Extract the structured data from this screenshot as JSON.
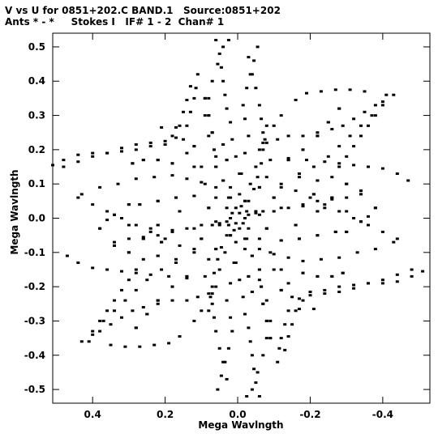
{
  "header": {
    "line1": "V vs U for 0851+202.C BAND.1   Source:0851+202",
    "line2": "Ants * - *     Stokes I   IF# 1 - 2  Chan# 1"
  },
  "chart_data": {
    "type": "scatter",
    "title": "V vs U for 0851+202.C BAND.1   Source:0851+202",
    "subtitle": "Ants * - *     Stokes I   IF# 1 - 2  Chan# 1",
    "xlabel": "Mega Wavlngth",
    "ylabel": "Mega Wavlngth",
    "xlim": [
      0.51,
      -0.53
    ],
    "ylim": [
      -0.54,
      0.54
    ],
    "x_reversed": true,
    "xticks": [
      0.4,
      0.2,
      0.0,
      -0.2,
      -0.4
    ],
    "xtick_labels": [
      "0.4",
      "0.2",
      "0.0",
      "-0.2",
      "-0.4"
    ],
    "yticks": [
      0.5,
      0.4,
      0.3,
      0.2,
      0.1,
      0.0,
      -0.1,
      -0.2,
      -0.3,
      -0.4,
      -0.5
    ],
    "ytick_labels": [
      "0.5",
      "0.4",
      "0.3",
      "0.2",
      "0.1",
      "0.0",
      "-0.1",
      "-0.2",
      "-0.3",
      "-0.4",
      "-0.5"
    ],
    "grid": false,
    "marker_color": "#000000",
    "series": [
      {
        "points": [
          [
            0.48,
            0.15
          ],
          [
            0.44,
            0.165
          ],
          [
            0.4,
            0.18
          ],
          [
            0.36,
            0.19
          ],
          [
            0.32,
            0.205
          ],
          [
            0.28,
            0.215
          ],
          [
            0.24,
            0.22
          ],
          [
            0.2,
            0.225
          ],
          [
            0.17,
            0.235
          ],
          [
            0.12,
            0.21
          ],
          [
            0.43,
            0.07
          ],
          [
            0.38,
            0.09
          ],
          [
            0.33,
            0.1
          ],
          [
            0.28,
            0.115
          ],
          [
            0.23,
            0.12
          ],
          [
            0.18,
            0.125
          ],
          [
            0.14,
            0.115
          ],
          [
            0.1,
            0.105
          ],
          [
            0.06,
            0.09
          ],
          [
            0.36,
            -0.005
          ],
          [
            0.3,
            -0.02
          ],
          [
            0.24,
            -0.03
          ],
          [
            0.18,
            -0.035
          ],
          [
            0.12,
            -0.03
          ],
          [
            0.07,
            -0.02
          ],
          [
            0.03,
            -0.01
          ],
          [
            -0.02,
            0.0
          ],
          [
            -0.06,
            0.01
          ],
          [
            -0.1,
            0.02
          ],
          [
            -0.14,
            0.03
          ],
          [
            -0.18,
            0.04
          ],
          [
            -0.22,
            0.05
          ],
          [
            -0.26,
            0.055
          ],
          [
            -0.3,
            0.06
          ],
          [
            -0.34,
            0.07
          ],
          [
            0.41,
            -0.36
          ],
          [
            0.4,
            -0.34
          ],
          [
            0.38,
            -0.3
          ],
          [
            0.36,
            -0.27
          ],
          [
            0.34,
            -0.24
          ],
          [
            0.32,
            -0.21
          ],
          [
            0.3,
            -0.18
          ],
          [
            0.28,
            -0.15
          ],
          [
            0.26,
            -0.12
          ],
          [
            0.35,
            -0.37
          ],
          [
            0.31,
            -0.375
          ],
          [
            0.27,
            -0.375
          ],
          [
            0.23,
            -0.37
          ],
          [
            0.19,
            -0.365
          ],
          [
            0.16,
            -0.345
          ],
          [
            0.12,
            -0.3
          ],
          [
            0.1,
            -0.27
          ],
          [
            0.08,
            -0.22
          ],
          [
            0.055,
            -0.5
          ],
          [
            0.045,
            -0.46
          ],
          [
            0.035,
            -0.42
          ],
          [
            0.025,
            -0.38
          ],
          [
            0.015,
            -0.33
          ],
          [
            0.02,
            -0.29
          ],
          [
            0.03,
            -0.24
          ],
          [
            0.02,
            -0.19
          ],
          [
            0.01,
            -0.13
          ],
          [
            0.005,
            -0.07
          ],
          [
            -0.025,
            -0.52
          ],
          [
            -0.04,
            -0.5
          ],
          [
            -0.055,
            -0.45
          ],
          [
            -0.07,
            -0.4
          ],
          [
            -0.08,
            -0.35
          ],
          [
            -0.09,
            -0.3
          ],
          [
            -0.08,
            -0.24
          ],
          [
            -0.06,
            -0.18
          ],
          [
            -0.04,
            -0.11
          ],
          [
            -0.13,
            -0.385
          ],
          [
            -0.14,
            -0.345
          ],
          [
            -0.15,
            -0.31
          ],
          [
            -0.16,
            -0.27
          ],
          [
            -0.18,
            -0.24
          ],
          [
            -0.2,
            -0.215
          ],
          [
            -0.24,
            -0.21
          ],
          [
            -0.28,
            -0.2
          ],
          [
            -0.32,
            -0.195
          ],
          [
            -0.36,
            -0.19
          ],
          [
            -0.4,
            -0.19
          ],
          [
            -0.44,
            -0.185
          ],
          [
            -0.48,
            -0.17
          ],
          [
            -0.51,
            -0.155
          ],
          [
            -0.21,
            -0.265
          ],
          [
            -0.17,
            -0.265
          ],
          [
            -0.12,
            -0.21
          ],
          [
            -0.1,
            -0.15
          ],
          [
            -0.44,
            -0.06
          ],
          [
            -0.4,
            -0.04
          ],
          [
            -0.36,
            -0.02
          ],
          [
            -0.32,
            0.0
          ],
          [
            -0.28,
            0.02
          ],
          [
            -0.24,
            0.04
          ],
          [
            -0.2,
            0.06
          ],
          [
            -0.16,
            0.08
          ],
          [
            -0.12,
            0.1
          ],
          [
            -0.08,
            0.12
          ],
          [
            -0.47,
            0.11
          ],
          [
            -0.44,
            0.13
          ],
          [
            -0.4,
            0.145
          ],
          [
            -0.36,
            0.15
          ],
          [
            -0.32,
            0.155
          ],
          [
            -0.28,
            0.16
          ],
          [
            -0.24,
            0.165
          ],
          [
            -0.19,
            0.17
          ],
          [
            -0.14,
            0.175
          ],
          [
            -0.09,
            0.17
          ],
          [
            -0.43,
            0.36
          ],
          [
            -0.4,
            0.33
          ],
          [
            -0.37,
            0.3
          ],
          [
            -0.34,
            0.27
          ],
          [
            -0.31,
            0.24
          ],
          [
            -0.28,
            0.21
          ],
          [
            -0.25,
            0.18
          ],
          [
            -0.21,
            0.15
          ],
          [
            -0.17,
            0.12
          ],
          [
            -0.12,
            0.09
          ],
          [
            -0.38,
            0.33
          ],
          [
            -0.35,
            0.31
          ],
          [
            -0.32,
            0.29
          ],
          [
            -0.29,
            0.27
          ],
          [
            -0.26,
            0.26
          ],
          [
            -0.22,
            0.25
          ],
          [
            -0.18,
            0.24
          ],
          [
            -0.14,
            0.24
          ],
          [
            -0.11,
            0.23
          ],
          [
            -0.07,
            0.22
          ],
          [
            0.06,
            0.52
          ],
          [
            0.05,
            0.48
          ],
          [
            0.045,
            0.44
          ],
          [
            0.04,
            0.4
          ],
          [
            0.035,
            0.36
          ],
          [
            0.03,
            0.32
          ],
          [
            0.02,
            0.28
          ],
          [
            0.015,
            0.23
          ],
          [
            0.005,
            0.18
          ],
          [
            -0.005,
            0.13
          ],
          [
            -0.03,
            0.47
          ],
          [
            -0.04,
            0.42
          ],
          [
            -0.05,
            0.38
          ],
          [
            -0.06,
            0.33
          ],
          [
            -0.065,
            0.29
          ],
          [
            -0.07,
            0.25
          ],
          [
            -0.06,
            0.2
          ],
          [
            -0.05,
            0.15
          ],
          [
            -0.035,
            0.1
          ],
          [
            -0.02,
            0.05
          ],
          [
            0.11,
            0.42
          ],
          [
            0.115,
            0.38
          ],
          [
            0.12,
            0.35
          ],
          [
            0.13,
            0.31
          ],
          [
            0.14,
            0.27
          ],
          [
            0.15,
            0.23
          ],
          [
            0.14,
            0.19
          ],
          [
            0.12,
            0.15
          ],
          [
            0.09,
            0.1
          ],
          [
            0.06,
            0.06
          ],
          [
            -0.08,
            0.27
          ],
          [
            -0.075,
            0.23
          ],
          [
            -0.07,
            0.2
          ],
          [
            -0.065,
            0.16
          ],
          [
            -0.055,
            0.12
          ],
          [
            -0.045,
            0.085
          ],
          [
            -0.03,
            0.05
          ],
          [
            0.02,
            0.09
          ],
          [
            0.025,
            0.06
          ],
          [
            0.03,
            0.03
          ],
          [
            0.015,
            0.015
          ],
          [
            -0.01,
            0.035
          ],
          [
            -0.025,
            0.02
          ],
          [
            0.005,
            -0.015
          ],
          [
            -0.005,
            -0.03
          ],
          [
            0.02,
            -0.05
          ],
          [
            -0.02,
            -0.06
          ],
          [
            0.05,
            -0.02
          ],
          [
            -0.05,
            0.015
          ],
          [
            0.08,
            0.03
          ],
          [
            -0.08,
            -0.03
          ],
          [
            0.1,
            -0.06
          ],
          [
            -0.1,
            0.06
          ],
          [
            0.06,
            -0.09
          ],
          [
            -0.06,
            0.09
          ],
          [
            0.04,
            0.11
          ],
          [
            -0.04,
            -0.11
          ],
          [
            0.27,
            0.04
          ],
          [
            0.22,
            0.05
          ],
          [
            0.17,
            0.06
          ],
          [
            0.12,
            0.065
          ],
          [
            -0.27,
            -0.04
          ],
          [
            -0.22,
            -0.05
          ],
          [
            -0.17,
            -0.06
          ],
          [
            -0.12,
            -0.065
          ],
          [
            0.22,
            -0.11
          ],
          [
            0.17,
            -0.13
          ],
          [
            0.14,
            -0.17
          ],
          [
            0.18,
            -0.2
          ],
          [
            0.22,
            -0.24
          ],
          [
            0.25,
            -0.28
          ],
          [
            0.28,
            -0.32
          ],
          [
            -0.22,
            0.11
          ],
          [
            -0.17,
            0.13
          ],
          [
            -0.14,
            0.17
          ],
          [
            -0.18,
            0.2
          ],
          [
            -0.22,
            0.24
          ],
          [
            -0.25,
            0.28
          ],
          [
            -0.28,
            0.32
          ],
          [
            0.3,
            0.04
          ],
          [
            0.34,
            0.01
          ],
          [
            0.38,
            -0.03
          ],
          [
            0.34,
            -0.08
          ],
          [
            0.3,
            -0.1
          ],
          [
            0.26,
            -0.06
          ],
          [
            0.22,
            -0.02
          ],
          [
            -0.3,
            -0.04
          ],
          [
            -0.34,
            -0.01
          ],
          [
            -0.38,
            0.03
          ],
          [
            -0.34,
            0.08
          ],
          [
            -0.3,
            0.1
          ],
          [
            -0.26,
            0.06
          ],
          [
            -0.22,
            0.02
          ],
          [
            0.09,
            0.35
          ],
          [
            0.08,
            0.3
          ],
          [
            0.07,
            0.25
          ],
          [
            0.065,
            0.2
          ],
          [
            0.06,
            0.15
          ],
          [
            -0.09,
            -0.35
          ],
          [
            -0.08,
            -0.3
          ],
          [
            -0.07,
            -0.25
          ],
          [
            -0.065,
            -0.2
          ],
          [
            -0.06,
            -0.15
          ],
          [
            0.18,
            0.16
          ],
          [
            0.22,
            0.17
          ],
          [
            0.26,
            0.17
          ],
          [
            0.29,
            0.16
          ],
          [
            -0.18,
            -0.16
          ],
          [
            -0.22,
            -0.17
          ],
          [
            -0.26,
            -0.17
          ],
          [
            -0.29,
            -0.16
          ],
          [
            0.04,
            0.215
          ],
          [
            0.03,
            0.17
          ],
          [
            -0.04,
            -0.215
          ],
          [
            -0.03,
            -0.17
          ],
          [
            0.16,
            0.02
          ],
          [
            -0.16,
            -0.02
          ],
          [
            0.21,
            -0.07
          ],
          [
            -0.21,
            0.07
          ]
        ]
      }
    ]
  }
}
